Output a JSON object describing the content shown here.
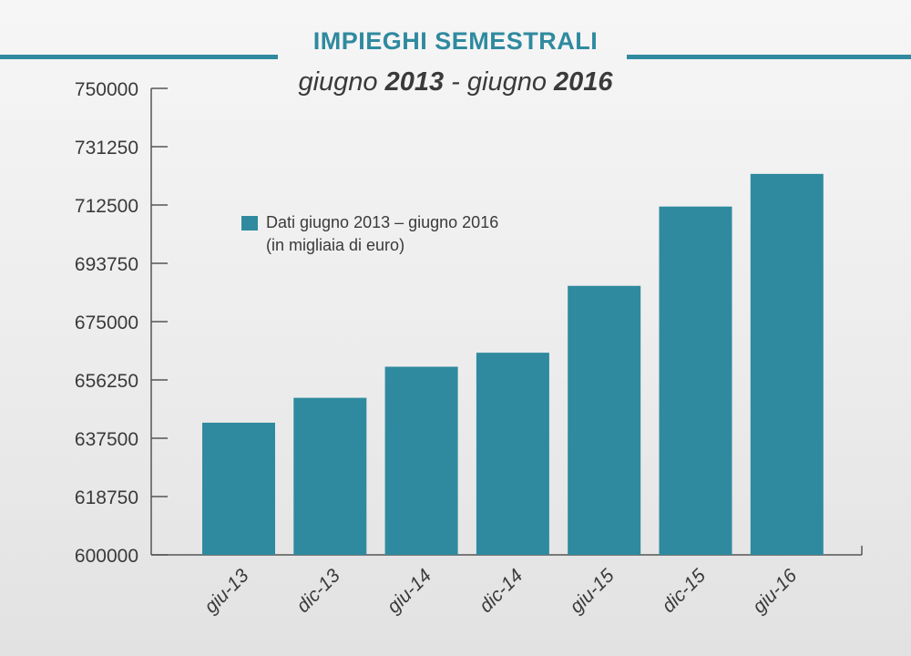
{
  "title": "IMPIEGHI SEMESTRALI",
  "subtitle": {
    "part1": "giugno ",
    "year1": "2013",
    "sep": " - giugno ",
    "year2": "2016"
  },
  "colors": {
    "accent": "#2f8a9f",
    "text": "#3a3a3a"
  },
  "legend": {
    "line1": "Dati giugno 2013 – giugno 2016",
    "line2": "(in migliaia di euro)"
  },
  "chart_data": {
    "type": "bar",
    "categories": [
      "giu-13",
      "dic-13",
      "giu-14",
      "dic-14",
      "giu-15",
      "dic-15",
      "giu-16"
    ],
    "values": [
      642500,
      650500,
      660500,
      665000,
      686500,
      712000,
      722500
    ],
    "ylim": [
      600000,
      750000
    ],
    "yticks": [
      "750000",
      "731250",
      "712500",
      "693750",
      "675000",
      "656250",
      "637500",
      "618750",
      "600000"
    ],
    "grid": false,
    "legend_position": "top-left"
  }
}
